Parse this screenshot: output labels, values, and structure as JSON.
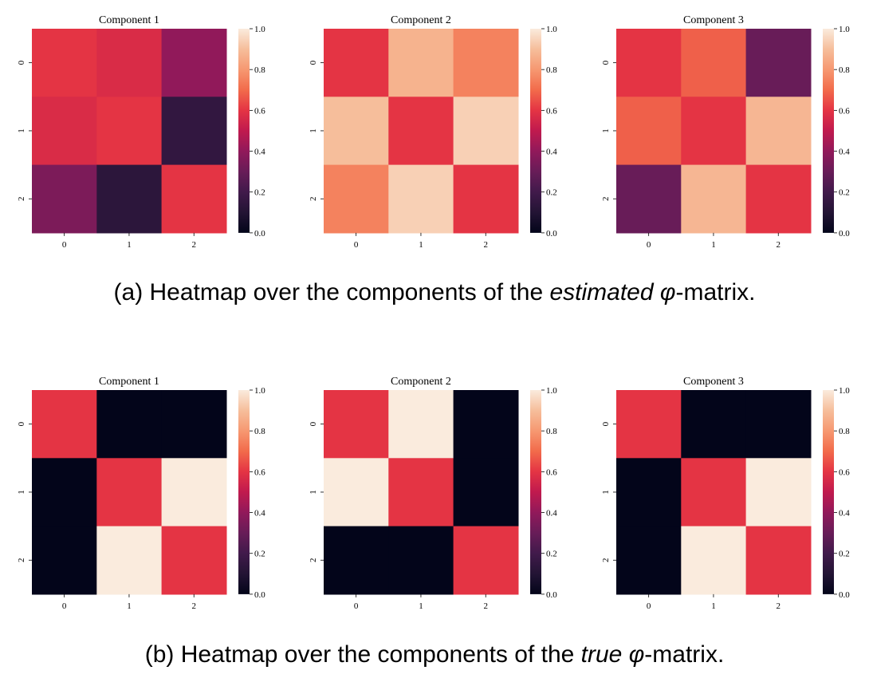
{
  "figure": {
    "panels": [
      {
        "caption": {
          "prefix": "(a) Heatmap over the components of the ",
          "emph": "estimated",
          "symbol": "φ",
          "suffix": "-matrix."
        }
      },
      {
        "caption": {
          "prefix": "(b) Heatmap over the components of the ",
          "emph": "true",
          "symbol": "φ",
          "suffix": "-matrix."
        }
      }
    ]
  },
  "chart_data": [
    {
      "type": "heatmap",
      "title": "Component 1",
      "row_labels": [
        "0",
        "1",
        "2"
      ],
      "col_labels": [
        "0",
        "1",
        "2"
      ],
      "values": [
        [
          0.6,
          0.57,
          0.4
        ],
        [
          0.57,
          0.6,
          0.15
        ],
        [
          0.35,
          0.13,
          0.6
        ]
      ],
      "colorbar": {
        "range": [
          0,
          1
        ],
        "ticks": [
          "0.0",
          "0.2",
          "0.4",
          "0.6",
          "0.8",
          "1.0"
        ]
      },
      "colormap": "rocket"
    },
    {
      "type": "heatmap",
      "title": "Component 2",
      "row_labels": [
        "0",
        "1",
        "2"
      ],
      "col_labels": [
        "0",
        "1",
        "2"
      ],
      "values": [
        [
          0.6,
          0.87,
          0.75
        ],
        [
          0.9,
          0.6,
          0.94
        ],
        [
          0.75,
          0.94,
          0.6
        ]
      ],
      "colorbar": {
        "range": [
          0,
          1
        ],
        "ticks": [
          "0.0",
          "0.2",
          "0.4",
          "0.6",
          "0.8",
          "1.0"
        ]
      },
      "colormap": "rocket"
    },
    {
      "type": "heatmap",
      "title": "Component 3",
      "row_labels": [
        "0",
        "1",
        "2"
      ],
      "col_labels": [
        "0",
        "1",
        "2"
      ],
      "values": [
        [
          0.6,
          0.68,
          0.3
        ],
        [
          0.68,
          0.6,
          0.88
        ],
        [
          0.3,
          0.88,
          0.6
        ]
      ],
      "colorbar": {
        "range": [
          0,
          1
        ],
        "ticks": [
          "0.0",
          "0.2",
          "0.4",
          "0.6",
          "0.8",
          "1.0"
        ]
      },
      "colormap": "rocket"
    },
    {
      "type": "heatmap",
      "title": "Component 1",
      "row_labels": [
        "0",
        "1",
        "2"
      ],
      "col_labels": [
        "0",
        "1",
        "2"
      ],
      "values": [
        [
          0.6,
          0.0,
          0.0
        ],
        [
          0.0,
          0.6,
          1.0
        ],
        [
          0.0,
          1.0,
          0.6
        ]
      ],
      "colorbar": {
        "range": [
          0,
          1
        ],
        "ticks": [
          "0.0",
          "0.2",
          "0.4",
          "0.6",
          "0.8",
          "1.0"
        ]
      },
      "colormap": "rocket"
    },
    {
      "type": "heatmap",
      "title": "Component 2",
      "row_labels": [
        "0",
        "1",
        "2"
      ],
      "col_labels": [
        "0",
        "1",
        "2"
      ],
      "values": [
        [
          0.6,
          1.0,
          0.0
        ],
        [
          1.0,
          0.6,
          0.0
        ],
        [
          0.0,
          0.0,
          0.6
        ]
      ],
      "colorbar": {
        "range": [
          0,
          1
        ],
        "ticks": [
          "0.0",
          "0.2",
          "0.4",
          "0.6",
          "0.8",
          "1.0"
        ]
      },
      "colormap": "rocket"
    },
    {
      "type": "heatmap",
      "title": "Component 3",
      "row_labels": [
        "0",
        "1",
        "2"
      ],
      "col_labels": [
        "0",
        "1",
        "2"
      ],
      "values": [
        [
          0.6,
          0.0,
          0.0
        ],
        [
          0.0,
          0.6,
          1.0
        ],
        [
          0.0,
          1.0,
          0.6
        ]
      ],
      "colorbar": {
        "range": [
          0,
          1
        ],
        "ticks": [
          "0.0",
          "0.2",
          "0.4",
          "0.6",
          "0.8",
          "1.0"
        ]
      },
      "colormap": "rocket"
    }
  ]
}
